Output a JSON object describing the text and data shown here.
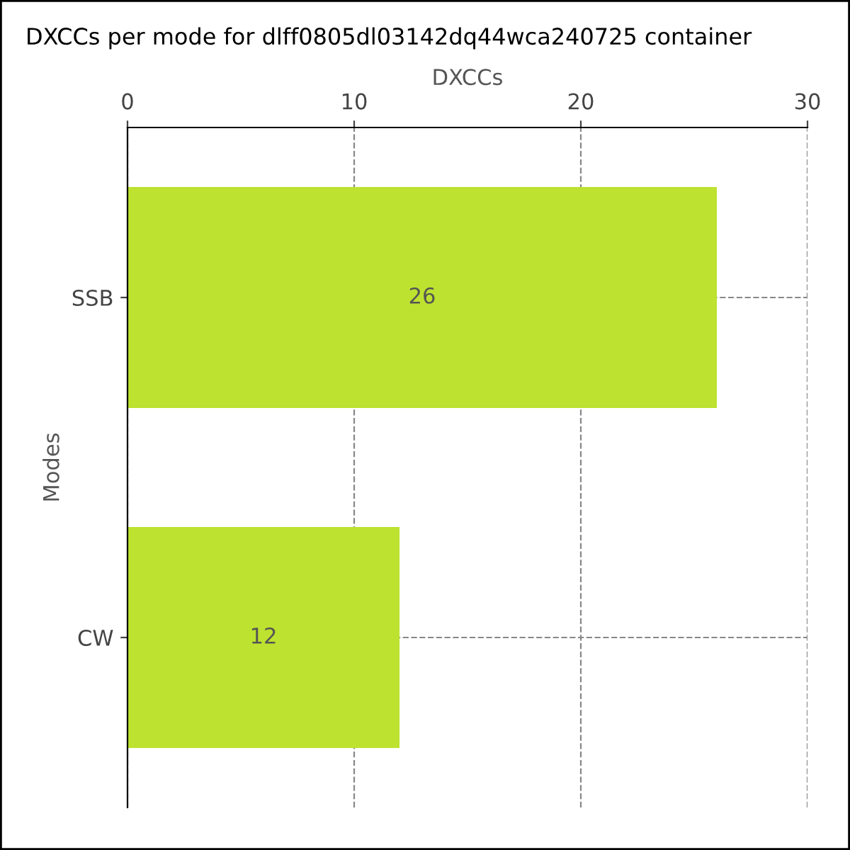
{
  "chart_data": {
    "type": "bar",
    "orientation": "horizontal",
    "title": "DXCCs per mode for dlff0805dl03142dq44wca240725 container",
    "xlabel": "DXCCs",
    "ylabel": "Modes",
    "categories": [
      "SSB",
      "CW"
    ],
    "values": [
      26,
      12
    ],
    "color": "#bde22f",
    "xlim": [
      0,
      30
    ],
    "xticks": [
      0,
      10,
      20,
      30
    ],
    "grid": true,
    "data_labels": true
  }
}
